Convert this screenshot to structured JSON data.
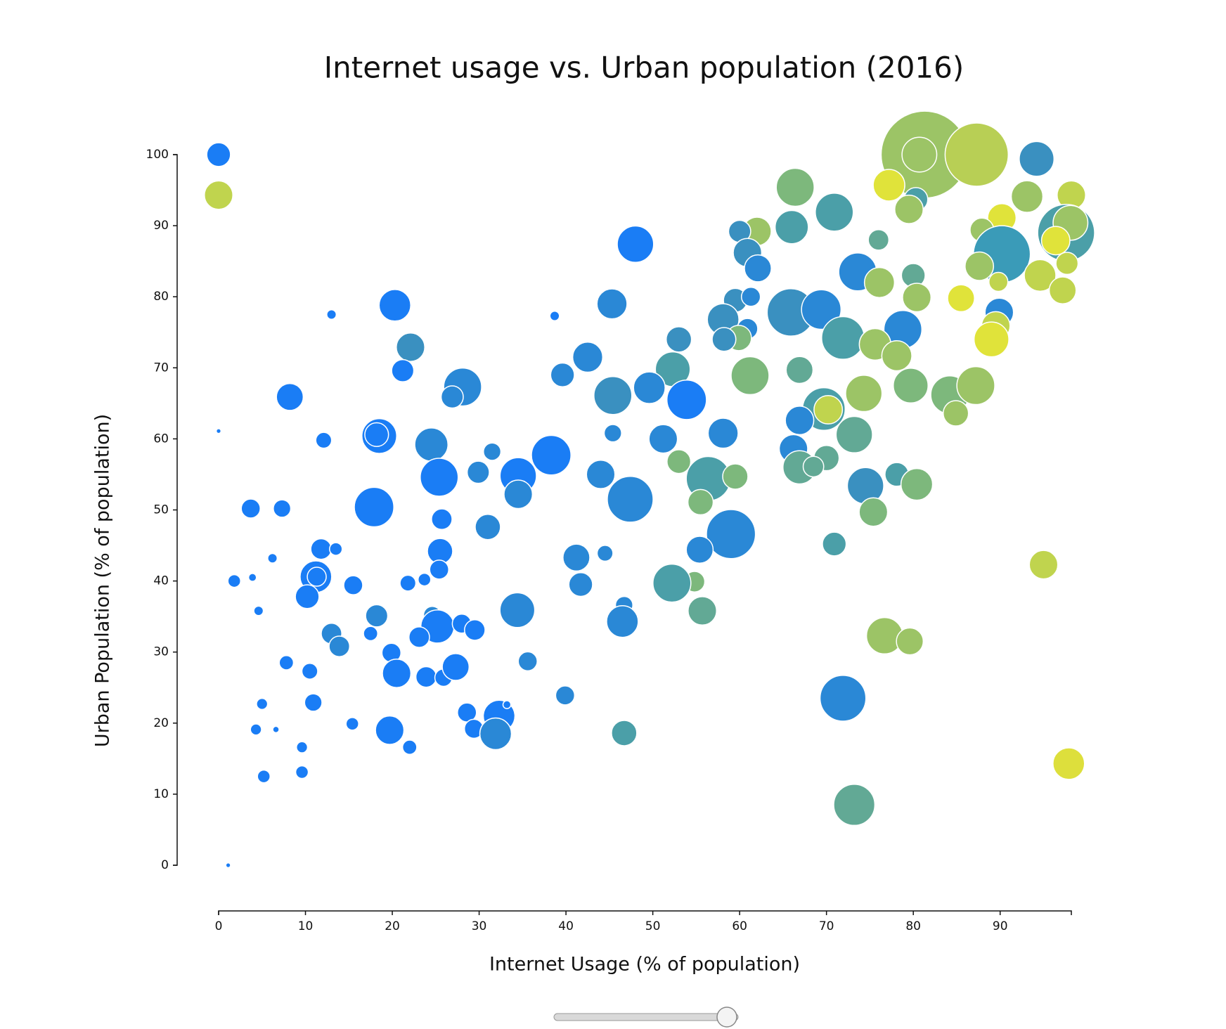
{
  "chart_data": {
    "type": "scatter",
    "title": "Internet usage vs. Urban population (2016)",
    "x_label": "Internet Usage (% of population)",
    "y_label": "Urban Population (% of population)",
    "xlim": [
      0,
      98.2
    ],
    "ylim": [
      0,
      100
    ],
    "xticks": [
      0,
      10,
      20,
      30,
      40,
      50,
      60,
      70,
      80,
      90
    ],
    "yticks": [
      0,
      10,
      20,
      30,
      40,
      50,
      60,
      70,
      80,
      90,
      100
    ],
    "x": [
      0,
      0,
      81.3,
      87.3,
      80.7,
      94.2,
      77.2,
      66.4,
      80.3,
      79.5,
      70.9,
      93.1,
      98.2,
      90.2,
      66,
      62,
      60,
      76,
      97.6,
      98.1,
      96.4,
      87.9,
      90.2,
      87.6,
      48,
      60.9,
      62.1,
      73.6,
      76.1,
      80,
      94.6,
      97.7,
      97.2,
      89.8,
      85.5,
      80.4,
      89.9,
      89.5,
      89,
      45.3,
      20.3,
      13,
      38.7,
      59.5,
      61.3,
      58.1,
      60.9,
      59.9,
      58.2,
      65.9,
      69.4,
      78.8,
      71.9,
      75.6,
      78.1,
      53,
      22.1,
      21.2,
      42.5,
      39.6,
      52.3,
      61.2,
      66.9,
      28.1,
      26.9,
      8.2,
      45.4,
      49.6,
      53.9,
      74.3,
      79.7,
      84.2,
      87.2,
      84.9,
      69.7,
      70.2,
      66.9,
      73.2,
      66.2,
      70,
      66.9,
      68.5,
      78.1,
      80.4,
      74.5,
      75.4,
      70.9,
      18.5,
      18.2,
      12.1,
      24.5,
      45.4,
      51.2,
      58.1,
      31.5,
      38.3,
      53,
      29.9,
      25.4,
      34.5,
      44,
      56.4,
      59.5,
      34.5,
      47.4,
      55.5,
      3.7,
      7.3,
      17.9,
      25.7,
      31,
      59,
      55.4,
      25.5,
      11.8,
      13.5,
      6.2,
      41.2,
      44.5,
      95,
      11.2,
      11.3,
      1.8,
      3.9,
      15.5,
      21.8,
      23.7,
      25.4,
      41.7,
      54.8,
      52.2,
      10.2,
      4.6,
      18.2,
      24.6,
      25.2,
      28,
      29.5,
      34.4,
      46.7,
      46.5,
      55.7,
      76.7,
      79.6,
      13,
      17.5,
      13.9,
      23.1,
      19.9,
      7.8,
      10.5,
      20.5,
      23.9,
      25.9,
      27.3,
      35.6,
      5,
      10.9,
      39.9,
      71.9,
      28.6,
      29.4,
      32.3,
      33.2,
      31.9,
      19.7,
      15.4,
      4.3,
      6.6,
      46.7,
      22,
      9.6,
      9.6,
      5.2,
      97.9,
      73.2,
      1.1,
      0
    ],
    "values": [
      100,
      94.3,
      100,
      100,
      100,
      99.4,
      95.7,
      95.4,
      93.7,
      92.3,
      91.9,
      94.1,
      94.3,
      91.1,
      89.8,
      89.2,
      89.2,
      88,
      89,
      90.4,
      87.9,
      89.4,
      86,
      84.3,
      87.4,
      86.2,
      84,
      83.5,
      82,
      83,
      83,
      84.7,
      80.9,
      82.1,
      79.8,
      79.9,
      77.8,
      75.9,
      74,
      79,
      78.8,
      77.5,
      77.3,
      79.5,
      80,
      76.8,
      75.5,
      74.2,
      74,
      77.8,
      78.2,
      75.4,
      74.2,
      73.3,
      71.7,
      74,
      72.9,
      69.6,
      71.5,
      69,
      69.8,
      68.9,
      69.7,
      67.3,
      65.9,
      65.9,
      66.1,
      67.2,
      65.5,
      66.4,
      67.5,
      66.2,
      67.5,
      63.6,
      64.2,
      64.1,
      62.6,
      60.6,
      58.6,
      57.3,
      56,
      56.1,
      55,
      53.6,
      53.4,
      49.7,
      45.2,
      60.4,
      60.6,
      59.8,
      59.2,
      60.8,
      60,
      60.8,
      58.2,
      57.7,
      56.8,
      55.3,
      54.6,
      54.8,
      55,
      54.4,
      54.7,
      52.2,
      51.5,
      51.1,
      50.2,
      50.2,
      50.4,
      48.7,
      47.6,
      46.6,
      44.4,
      44.2,
      44.5,
      44.5,
      43.2,
      43.3,
      43.9,
      42.3,
      40.6,
      40.6,
      40,
      40.5,
      39.4,
      39.7,
      40.2,
      41.6,
      39.5,
      39.9,
      39.7,
      37.8,
      35.8,
      35.1,
      35.2,
      33.6,
      34,
      33.1,
      35.9,
      36.6,
      34.3,
      35.8,
      32.3,
      31.5,
      32.6,
      32.6,
      30.8,
      32.1,
      29.9,
      28.5,
      27.3,
      27,
      26.5,
      26.4,
      27.9,
      28.7,
      22.7,
      22.9,
      23.9,
      23.5,
      21.5,
      19.2,
      21,
      22.6,
      18.5,
      19,
      19.9,
      19.1,
      19.1,
      18.6,
      16.6,
      16.6,
      13.1,
      12.5,
      14.3,
      8.5,
      0,
      61.1
    ],
    "sizes": [
      15,
      18,
      55,
      40,
      22,
      22,
      20,
      24,
      15,
      18,
      24,
      20,
      18,
      18,
      21,
      18,
      14,
      13,
      36,
      22,
      18,
      15,
      36,
      18,
      23,
      18,
      17,
      24,
      19,
      15,
      20,
      14,
      17,
      12,
      17,
      18,
      18,
      18,
      22,
      19,
      20,
      6,
      6,
      15,
      12,
      20,
      13,
      16,
      15,
      30,
      25,
      24,
      27,
      20,
      19,
      16,
      18,
      14,
      19,
      15,
      22,
      24,
      17,
      24,
      14,
      17,
      24,
      20,
      25,
      23,
      22,
      24,
      24,
      16,
      27,
      18,
      18,
      23,
      18,
      16,
      21,
      13,
      15,
      20,
      23,
      18,
      15,
      22,
      15,
      10,
      21,
      11,
      18,
      19,
      11,
      25,
      15,
      14,
      24,
      23,
      18,
      28,
      16,
      18,
      29,
      16,
      12,
      11,
      25,
      13,
      16,
      31,
      17,
      16,
      13,
      8,
      6,
      17,
      10,
      18,
      20,
      12,
      8,
      5,
      12,
      10,
      8,
      12,
      15,
      13,
      24,
      15,
      6,
      14,
      11,
      21,
      12,
      13,
      22,
      11,
      20,
      18,
      23,
      17,
      13,
      9,
      13,
      13,
      12,
      9,
      10,
      18,
      13,
      11,
      17,
      12,
      7,
      11,
      12,
      29,
      12,
      12,
      20,
      5,
      20,
      18,
      8,
      7,
      4,
      16,
      9,
      7,
      8,
      8,
      20,
      26,
      3,
      3
    ],
    "colors": [
      "#1a7df5",
      "#c0d44e",
      "#9cc466",
      "#b8cf55",
      "#9cc466",
      "#3a90c0",
      "#e0e33a",
      "#7db87c",
      "#4b9fa8",
      "#9cc466",
      "#4b9fa8",
      "#9cc466",
      "#c0d44e",
      "#e0e33a",
      "#4b9fa8",
      "#9cc466",
      "#3a90c0",
      "#62a995",
      "#4b9fa8",
      "#9cc466",
      "#e0e33a",
      "#9cc466",
      "#3a9bb8",
      "#9cc466",
      "#1a7df5",
      "#3a90c0",
      "#2a88d6",
      "#2a88d6",
      "#9cc466",
      "#62a995",
      "#c0d44e",
      "#c0d44e",
      "#c0d44e",
      "#c0d44e",
      "#e0e33a",
      "#9cc466",
      "#2a88d6",
      "#c0d44e",
      "#e0e33a",
      "#2a88d6",
      "#1a7df5",
      "#1a7df5",
      "#1a7df5",
      "#3a90c0",
      "#2a88d6",
      "#3a90c0",
      "#2a88d6",
      "#7db87c",
      "#3a90c0",
      "#3a90c0",
      "#2a88d6",
      "#2a88d6",
      "#4b9fa8",
      "#9cc466",
      "#9cc466",
      "#3a90c0",
      "#3a90c0",
      "#1a7df5",
      "#2a88d6",
      "#2a88d6",
      "#4b9fa8",
      "#7db87c",
      "#62a995",
      "#2a88d6",
      "#2a88d6",
      "#1a7df5",
      "#3a90c0",
      "#2a88d6",
      "#1a7df5",
      "#9cc466",
      "#7db87c",
      "#7db87c",
      "#9cc466",
      "#9cc466",
      "#4b9fa8",
      "#c0d44e",
      "#2a88d6",
      "#62a995",
      "#2a88d6",
      "#62a995",
      "#62a995",
      "#62a995",
      "#4b9fa8",
      "#7db87c",
      "#3a90c0",
      "#7db87c",
      "#4b9fa8",
      "#1a7df5",
      "#1a7df5",
      "#1a7df5",
      "#2a88d6",
      "#2a88d6",
      "#2a88d6",
      "#2a88d6",
      "#2a88d6",
      "#1a7df5",
      "#7db87c",
      "#2a88d6",
      "#1a7df5",
      "#1a7df5",
      "#2a88d6",
      "#4b9fa8",
      "#7db87c",
      "#2a88d6",
      "#2a88d6",
      "#7db87c",
      "#1a7df5",
      "#1a7df5",
      "#1a7df5",
      "#1a7df5",
      "#2a88d6",
      "#2a88d6",
      "#2a88d6",
      "#1a7df5",
      "#1a7df5",
      "#1a7df5",
      "#1a7df5",
      "#2a88d6",
      "#2a88d6",
      "#c0d44e",
      "#1a7df5",
      "#1a7df5",
      "#1a7df5",
      "#1a7df5",
      "#1a7df5",
      "#1a7df5",
      "#1a7df5",
      "#1a7df5",
      "#2a88d6",
      "#7db87c",
      "#4b9fa8",
      "#1a7df5",
      "#1a7df5",
      "#2a88d6",
      "#2a88d6",
      "#1a7df5",
      "#1a7df5",
      "#1a7df5",
      "#2a88d6",
      "#2a88d6",
      "#2a88d6",
      "#62a995",
      "#9cc466",
      "#9cc466",
      "#2a88d6",
      "#1a7df5",
      "#2a88d6",
      "#1a7df5",
      "#1a7df5",
      "#1a7df5",
      "#1a7df5",
      "#1a7df5",
      "#1a7df5",
      "#1a7df5",
      "#1a7df5",
      "#2a88d6",
      "#1a7df5",
      "#1a7df5",
      "#2a88d6",
      "#2a88d6",
      "#1a7df5",
      "#1a7df5",
      "#1a7df5",
      "#1a7df5",
      "#2a88d6",
      "#1a7df5",
      "#1a7df5",
      "#1a7df5",
      "#1a7df5",
      "#4b9fa8",
      "#1a7df5",
      "#1a7df5",
      "#1a7df5",
      "#1a7df5",
      "#dddf3c",
      "#62a995",
      "#1a7df5",
      "#1a7df5"
    ]
  }
}
